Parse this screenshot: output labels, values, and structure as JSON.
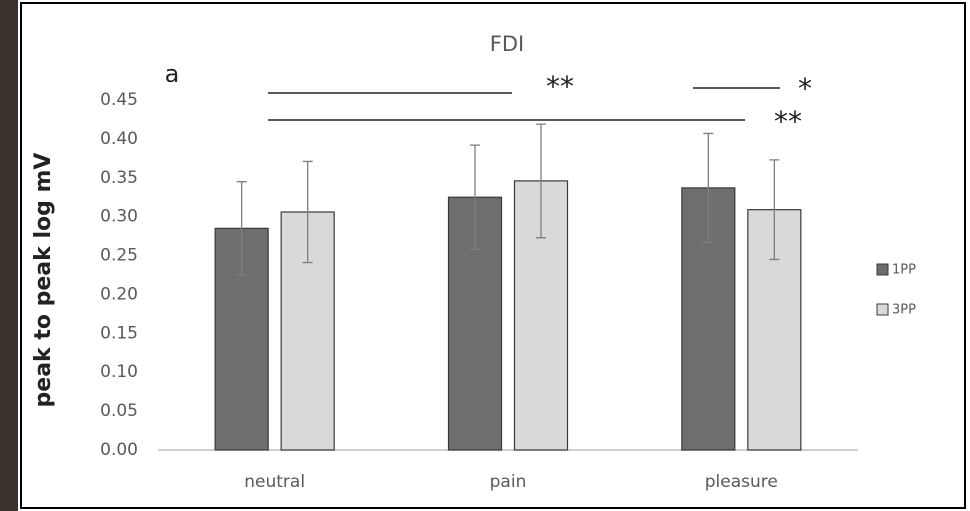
{
  "chart_data": {
    "type": "bar",
    "title": "FDI",
    "panel_label": "a",
    "y_label": "peak to peak log mV",
    "categories": [
      "neutral",
      "pain",
      "pleasure"
    ],
    "series": [
      {
        "name": "1PP",
        "color": "#6e6e6e",
        "values": [
          0.285,
          0.325,
          0.337
        ],
        "errors": [
          0.06,
          0.067,
          0.07
        ]
      },
      {
        "name": "3PP",
        "color": "#d9d9d9",
        "values": [
          0.306,
          0.346,
          0.309
        ],
        "errors": [
          0.065,
          0.073,
          0.064
        ]
      }
    ],
    "ylim": [
      0,
      0.45
    ],
    "yticks": [
      {
        "value": 0,
        "label": "0.00"
      },
      {
        "value": 0.05,
        "label": "0.05"
      },
      {
        "value": 0.1,
        "label": "0.10"
      },
      {
        "value": 0.15,
        "label": "0.15"
      },
      {
        "value": 0.2,
        "label": "0.20"
      },
      {
        "value": 0.25,
        "label": "0.25"
      },
      {
        "value": 0.3,
        "label": "0.30"
      },
      {
        "value": 0.35,
        "label": "0.35"
      },
      {
        "value": 0.4,
        "label": "0.40"
      },
      {
        "value": 0.45,
        "label": "0.45"
      }
    ],
    "annotations": [
      "**",
      "*",
      "**"
    ]
  }
}
